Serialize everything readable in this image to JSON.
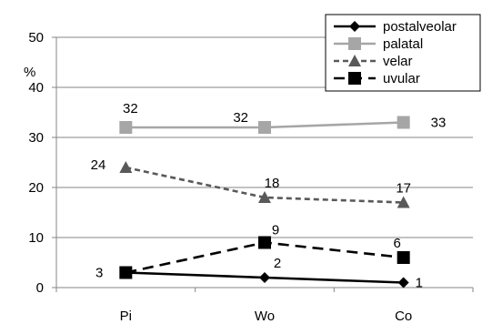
{
  "chart_data": {
    "type": "line",
    "categories": [
      "Pi",
      "Wo",
      "Co"
    ],
    "ylim": [
      0,
      50
    ],
    "yticks": [
      0,
      10,
      20,
      30,
      40,
      50
    ],
    "ylabel": "%",
    "grid": "horizontal",
    "legend_position": "top-right",
    "series": [
      {
        "name": "postalveolar",
        "values": [
          3,
          2,
          1
        ],
        "labels": [
          "",
          "2",
          "1"
        ],
        "color": "#000000",
        "dash": "solid",
        "marker": "diamond"
      },
      {
        "name": "palatal",
        "values": [
          32,
          32,
          33
        ],
        "labels": [
          "32",
          "32",
          "33"
        ],
        "color": "#a6a6a6",
        "dash": "solid",
        "marker": "square"
      },
      {
        "name": "velar",
        "values": [
          24,
          18,
          17
        ],
        "labels": [
          "24",
          "18",
          "17"
        ],
        "color": "#595959",
        "dash": "short-dash",
        "marker": "triangle"
      },
      {
        "name": "uvular",
        "values": [
          3,
          9,
          6
        ],
        "labels": [
          "3",
          "9",
          "6"
        ],
        "color": "#000000",
        "dash": "long-dash",
        "marker": "square"
      }
    ]
  }
}
